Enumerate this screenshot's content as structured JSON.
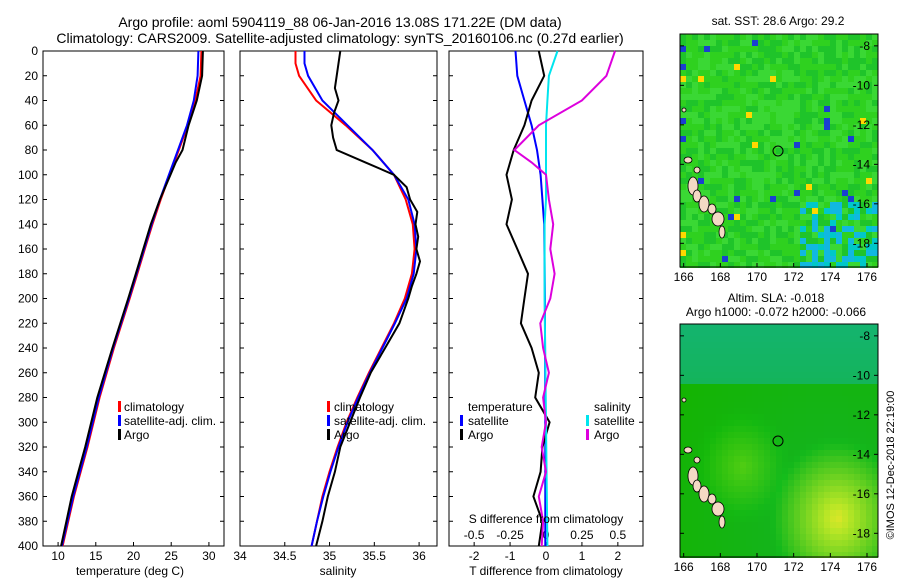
{
  "header": {
    "title_line1": "Argo profile: aoml 5904119_88 06-Jan-2016 13.08S 171.22E (DM data)",
    "title_line2": "Climatology: CARS2009. Satellite-adjusted climatology: synTS_20160106.nc (0.27d earlier)"
  },
  "colors": {
    "climatology": "#ff0000",
    "satellite": "#0000ff",
    "argo": "#000000",
    "satellite_salinity": "#00e5ee",
    "argo_salinity": "#dd00dd"
  },
  "legend": {
    "climatology": "climatology",
    "satellite_adj": "satellite-adj. clim.",
    "argo": "Argo",
    "temperature_head": "temperature",
    "salinity_head": "salinity",
    "satellite": "satellite"
  },
  "maps": {
    "sst_title": "sat. SST: 28.6 Argo: 29.2",
    "sla_title_line1": "Altim. SLA: -0.018",
    "sla_title_line2": "Argo h1000: -0.072 h2000: -0.066",
    "x_ticks": [
      "166",
      "168",
      "170",
      "172",
      "174",
      "176"
    ],
    "y_ticks": [
      "-8",
      "-10",
      "-12",
      "-14",
      "-16",
      "-18"
    ],
    "credit": "©IMOS 12-Dec-2018 22:19:00"
  },
  "chart_data": [
    {
      "type": "line",
      "title": "",
      "xlabel": "temperature (deg C)",
      "ylabel": "",
      "xlim": [
        8,
        32
      ],
      "ylim": [
        400,
        0
      ],
      "x_ticks": [
        "10",
        "15",
        "20",
        "25",
        "30"
      ],
      "y_ticks": [
        "0",
        "20",
        "40",
        "60",
        "80",
        "100",
        "120",
        "140",
        "160",
        "180",
        "200",
        "220",
        "240",
        "260",
        "280",
        "300",
        "320",
        "340",
        "360",
        "380",
        "400"
      ],
      "series": [
        {
          "name": "climatology",
          "color": "#ff0000",
          "depth": [
            0,
            20,
            40,
            60,
            80,
            100,
            120,
            140,
            160,
            180,
            200,
            240,
            280,
            320,
            360,
            400
          ],
          "values": [
            29.0,
            28.9,
            28.2,
            27.2,
            26.0,
            24.8,
            23.6,
            22.5,
            21.5,
            20.5,
            19.5,
            17.4,
            15.5,
            13.9,
            12.1,
            10.6
          ]
        },
        {
          "name": "satellite-adj. clim.",
          "color": "#0000ff",
          "depth": [
            0,
            20,
            40,
            60,
            80,
            100,
            120,
            140,
            160,
            180,
            200,
            240,
            280,
            320,
            360,
            400
          ],
          "values": [
            28.6,
            28.5,
            28.0,
            27.1,
            25.9,
            24.7,
            23.5,
            22.4,
            21.4,
            20.4,
            19.4,
            17.3,
            15.4,
            13.8,
            12.0,
            10.5
          ]
        },
        {
          "name": "Argo",
          "color": "#000000",
          "depth": [
            0,
            20,
            40,
            60,
            80,
            90,
            100,
            110,
            120,
            140,
            160,
            180,
            200,
            240,
            280,
            320,
            340,
            360,
            380,
            400
          ],
          "values": [
            29.2,
            29.1,
            28.4,
            27.3,
            26.5,
            25.6,
            24.9,
            24.2,
            23.5,
            22.3,
            21.3,
            20.3,
            19.3,
            17.2,
            15.2,
            13.6,
            12.7,
            11.8,
            11.1,
            10.4
          ]
        }
      ]
    },
    {
      "type": "line",
      "title": "",
      "xlabel": "salinity",
      "ylabel": "",
      "xlim": [
        34,
        36.2
      ],
      "ylim": [
        400,
        0
      ],
      "x_ticks": [
        "34",
        "34.5",
        "35",
        "35.5",
        "36"
      ],
      "series": [
        {
          "name": "climatology",
          "color": "#ff0000",
          "depth": [
            0,
            10,
            20,
            40,
            60,
            80,
            100,
            120,
            140,
            160,
            180,
            200,
            220,
            240,
            260,
            280,
            300,
            320,
            340,
            360,
            380,
            400
          ],
          "values": [
            34.62,
            34.62,
            34.66,
            34.85,
            35.18,
            35.48,
            35.72,
            35.85,
            35.93,
            35.95,
            35.92,
            35.84,
            35.72,
            35.58,
            35.44,
            35.31,
            35.19,
            35.09,
            35.0,
            34.92,
            34.86,
            34.8
          ]
        },
        {
          "name": "satellite-adj. clim.",
          "color": "#0000ff",
          "depth": [
            0,
            10,
            20,
            40,
            60,
            80,
            100,
            120,
            140,
            160,
            180,
            200,
            220,
            240,
            260,
            280,
            300,
            320,
            340,
            360,
            380,
            400
          ],
          "values": [
            34.72,
            34.72,
            34.76,
            34.92,
            35.2,
            35.48,
            35.72,
            35.88,
            35.95,
            35.97,
            35.94,
            35.86,
            35.73,
            35.59,
            35.45,
            35.32,
            35.2,
            35.1,
            35.01,
            34.93,
            34.86,
            34.8
          ]
        },
        {
          "name": "Argo",
          "color": "#000000",
          "depth": [
            0,
            10,
            20,
            30,
            40,
            50,
            60,
            70,
            80,
            90,
            100,
            110,
            120,
            130,
            140,
            150,
            160,
            170,
            180,
            190,
            200,
            220,
            240,
            260,
            280,
            300,
            320,
            340,
            360,
            380,
            400
          ],
          "values": [
            35.12,
            35.1,
            35.08,
            35.06,
            35.1,
            35.05,
            35.02,
            35.04,
            35.08,
            35.4,
            35.72,
            35.86,
            35.9,
            35.98,
            35.96,
            35.99,
            35.97,
            36.01,
            35.97,
            35.92,
            35.88,
            35.78,
            35.62,
            35.46,
            35.34,
            35.23,
            35.12,
            35.06,
            34.98,
            34.92,
            34.85
          ]
        }
      ]
    },
    {
      "type": "line",
      "title": "",
      "xlabel": "T difference from climatology",
      "ylabel": "",
      "x_ticks_temperature": [
        "-2",
        "-1",
        "0",
        "1",
        "2"
      ],
      "xlim_temperature": [
        -2.7,
        2.7
      ],
      "x_ticks_salinity_label": "S difference from climatology",
      "x_ticks_salinity": [
        "-0.5",
        "-0.25",
        "0",
        "0.25",
        "0.5"
      ],
      "xlim_salinity": [
        -0.675,
        0.675
      ],
      "ylim": [
        400,
        0
      ],
      "series": [
        {
          "name": "temperature satellite",
          "color": "#0000ff",
          "axis": "T",
          "depth": [
            0,
            20,
            40,
            60,
            80,
            100,
            120,
            140,
            200,
            300,
            400
          ],
          "values": [
            -0.85,
            -0.8,
            -0.6,
            -0.4,
            -0.25,
            -0.15,
            -0.1,
            -0.05,
            -0.03,
            -0.02,
            -0.02
          ]
        },
        {
          "name": "temperature Argo",
          "color": "#000000",
          "axis": "T",
          "depth": [
            0,
            20,
            40,
            60,
            80,
            100,
            120,
            140,
            160,
            180,
            200,
            220,
            240,
            260,
            280,
            300,
            320,
            340,
            360,
            380,
            400
          ],
          "values": [
            -0.2,
            -0.05,
            -0.4,
            -0.6,
            -0.9,
            -1.1,
            -0.95,
            -1.1,
            -0.8,
            -0.5,
            -0.6,
            -0.7,
            -0.4,
            -0.2,
            -0.3,
            0.1,
            -0.1,
            -0.15,
            -0.35,
            -0.1,
            -0.2
          ]
        },
        {
          "name": "salinity satellite",
          "color": "#00e5ee",
          "axis": "S",
          "depth": [
            0,
            20,
            40,
            60,
            80,
            100,
            120,
            140,
            200,
            300,
            400
          ],
          "values": [
            0.08,
            0.02,
            0.01,
            0.0,
            0.0,
            0.0,
            0.0,
            -0.01,
            -0.01,
            0.0,
            0.01
          ]
        },
        {
          "name": "salinity Argo",
          "color": "#dd00dd",
          "axis": "S",
          "depth": [
            0,
            20,
            40,
            60,
            80,
            90,
            100,
            120,
            140,
            160,
            180,
            200,
            220,
            240,
            260,
            280,
            300,
            320,
            340,
            360,
            380,
            400
          ],
          "values": [
            0.48,
            0.42,
            0.25,
            -0.05,
            -0.22,
            -0.1,
            0.0,
            0.02,
            0.05,
            0.03,
            0.06,
            0.03,
            -0.04,
            -0.02,
            0.02,
            -0.02,
            0.0,
            -0.03,
            0.0,
            -0.05,
            -0.02,
            -0.03
          ]
        }
      ]
    },
    {
      "type": "heatmap",
      "title": "sat. SST: 28.6 Argo: 29.2",
      "xlim": [
        165.8,
        176.6
      ],
      "ylim": [
        -19.2,
        -7.4
      ],
      "argo_position": [
        171.22,
        -13.08
      ]
    },
    {
      "type": "heatmap",
      "title": "Altim. SLA: -0.018",
      "xlim": [
        165.8,
        176.6
      ],
      "ylim": [
        -19.2,
        -7.4
      ],
      "argo_position": [
        171.22,
        -13.08
      ]
    }
  ]
}
